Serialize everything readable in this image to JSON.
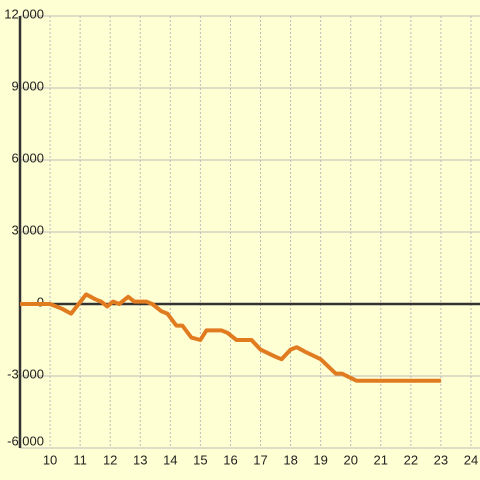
{
  "chart_data": {
    "type": "line",
    "x": [
      9,
      10,
      10.4,
      10.7,
      11.2,
      11.5,
      11.7,
      11.9,
      12.1,
      12.3,
      12.6,
      12.8,
      13.2,
      13.4,
      13.7,
      13.9,
      14.2,
      14.4,
      14.7,
      15.0,
      15.2,
      15.7,
      15.9,
      16.2,
      16.7,
      17.0,
      17.5,
      17.7,
      18.0,
      18.2,
      18.5,
      19.0,
      19.5,
      19.7,
      20.2,
      23.0
    ],
    "series": [
      {
        "color": "#e07b20",
        "values": [
          0,
          0,
          -200,
          -400,
          400,
          200,
          100,
          -100,
          100,
          0,
          300,
          100,
          100,
          0,
          -300,
          -400,
          -900,
          -900,
          -1400,
          -1500,
          -1100,
          -1100,
          -1200,
          -1500,
          -1500,
          -1900,
          -2200,
          -2300,
          -1900,
          -1800,
          -2000,
          -2300,
          -2900,
          -2900,
          -3200,
          -3200
        ]
      }
    ],
    "xlim": [
      9,
      24.3
    ],
    "xticks": [
      10,
      11,
      12,
      13,
      14,
      15,
      16,
      17,
      18,
      19,
      20,
      21,
      22,
      23,
      24
    ],
    "ylim": [
      -6000,
      12000
    ],
    "yticks": [
      {
        "value": -6000,
        "label": "-6,000"
      },
      {
        "value": -3000,
        "label": "-3,000"
      },
      0,
      {
        "value": 3000,
        "label": "3,000"
      },
      {
        "value": 6000,
        "label": "6,000"
      },
      {
        "value": 9000,
        "label": "9,000"
      },
      {
        "value": 12000,
        "label": "12,000"
      }
    ],
    "grid": true
  }
}
